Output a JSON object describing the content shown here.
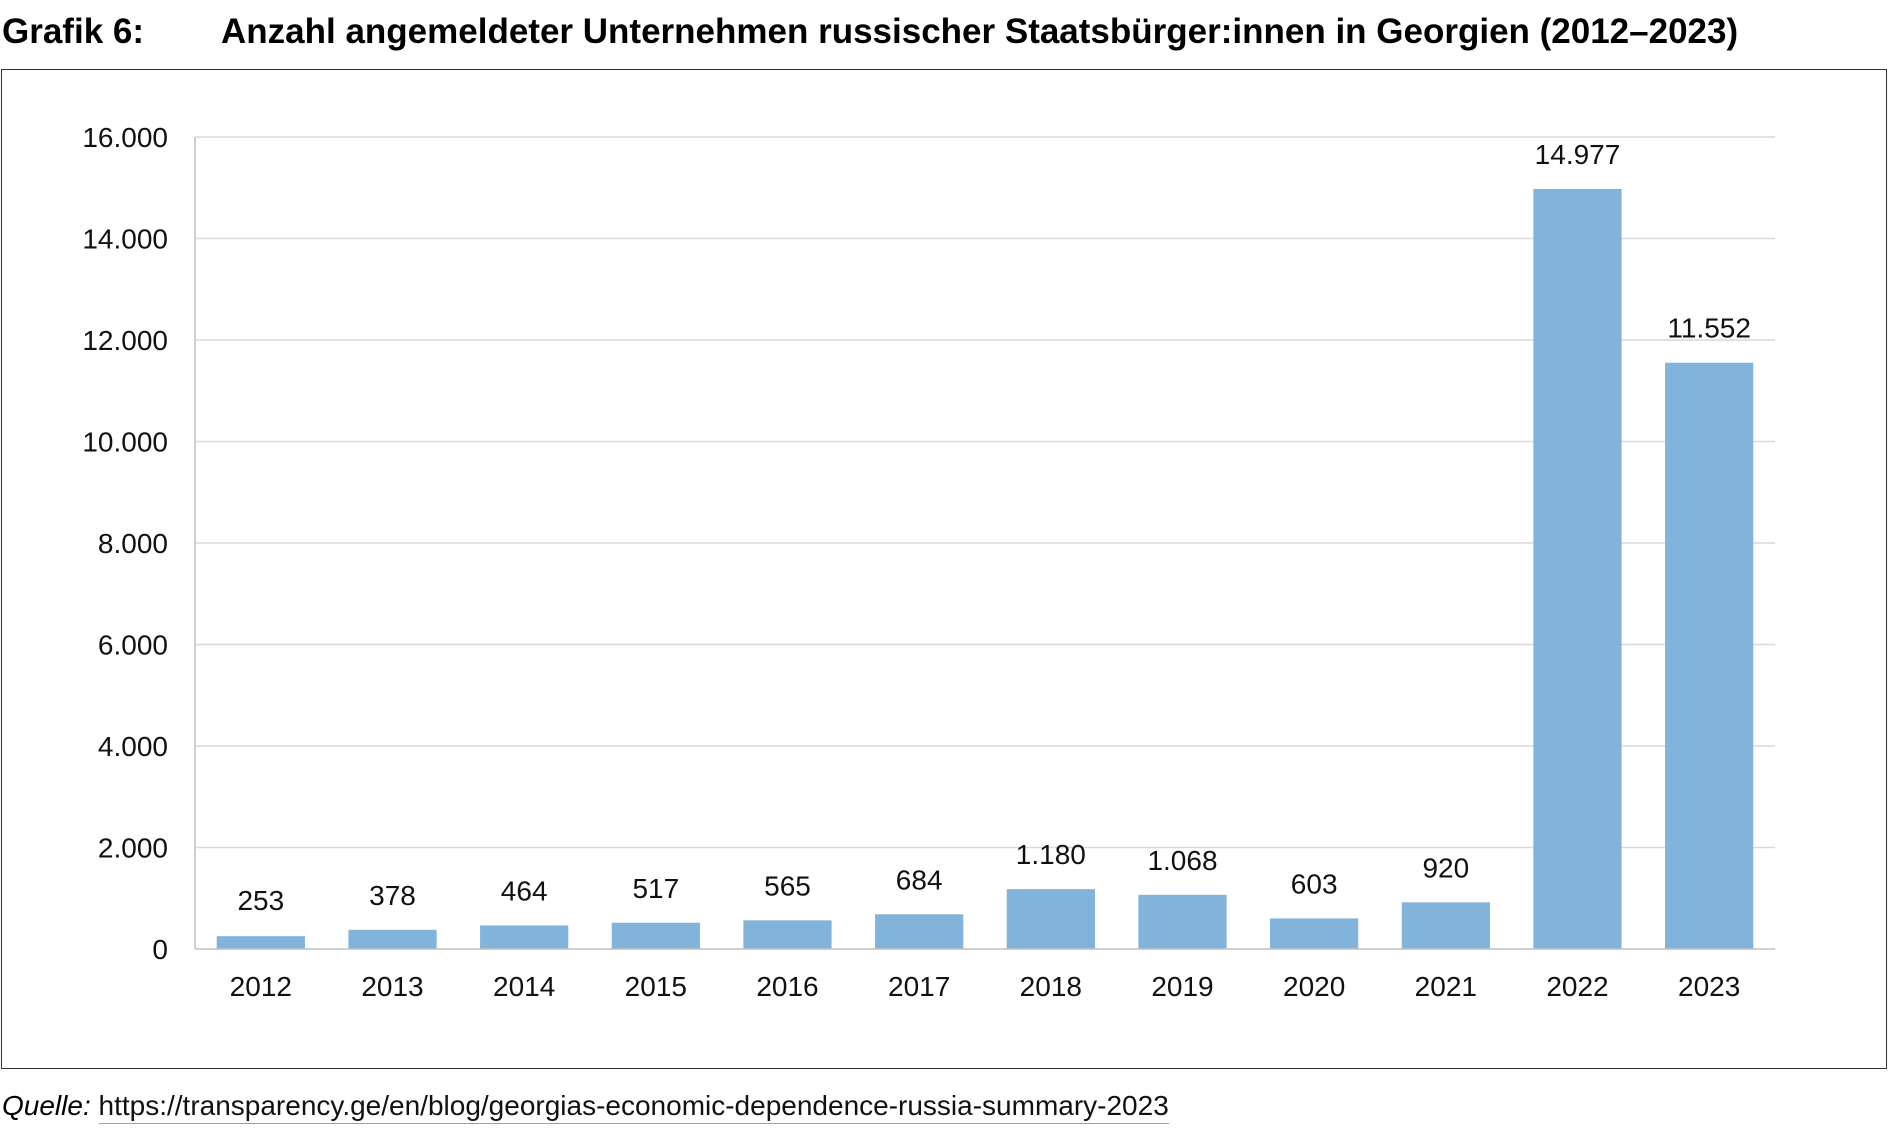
{
  "header": {
    "label": "Grafik 6:",
    "title": "Anzahl angemeldeter Unternehmen russischer Staatsbürger:innen in Georgien (2012–2023)"
  },
  "source": {
    "label": "Quelle:",
    "url": "https://transparency.ge/en/blog/georgias-economic-dependence-russia-summary-2023"
  },
  "chart_data": {
    "type": "bar",
    "title": "Anzahl angemeldeter Unternehmen russischer Staatsbürger:innen in Georgien (2012–2023)",
    "xlabel": "",
    "ylabel": "",
    "categories": [
      "2012",
      "2013",
      "2014",
      "2015",
      "2016",
      "2017",
      "2018",
      "2019",
      "2020",
      "2021",
      "2022",
      "2023"
    ],
    "values": [
      253,
      378,
      464,
      517,
      565,
      684,
      1180,
      1068,
      603,
      920,
      14977,
      11552
    ],
    "value_labels": [
      "253",
      "378",
      "464",
      "517",
      "565",
      "684",
      "1.180",
      "1.068",
      "603",
      "920",
      "14.977",
      "11.552"
    ],
    "ylim": [
      0,
      16000
    ],
    "yticks": [
      0,
      2000,
      4000,
      6000,
      8000,
      10000,
      12000,
      14000,
      16000
    ],
    "ytick_labels": [
      "0",
      "2.000",
      "4.000",
      "6.000",
      "8.000",
      "10.000",
      "12.000",
      "14.000",
      "16.000"
    ],
    "grid": true,
    "legend": "none",
    "bar_color": "#82b3da",
    "grid_color": "#d9d9d9",
    "axis_color": "#bfbfbf"
  }
}
